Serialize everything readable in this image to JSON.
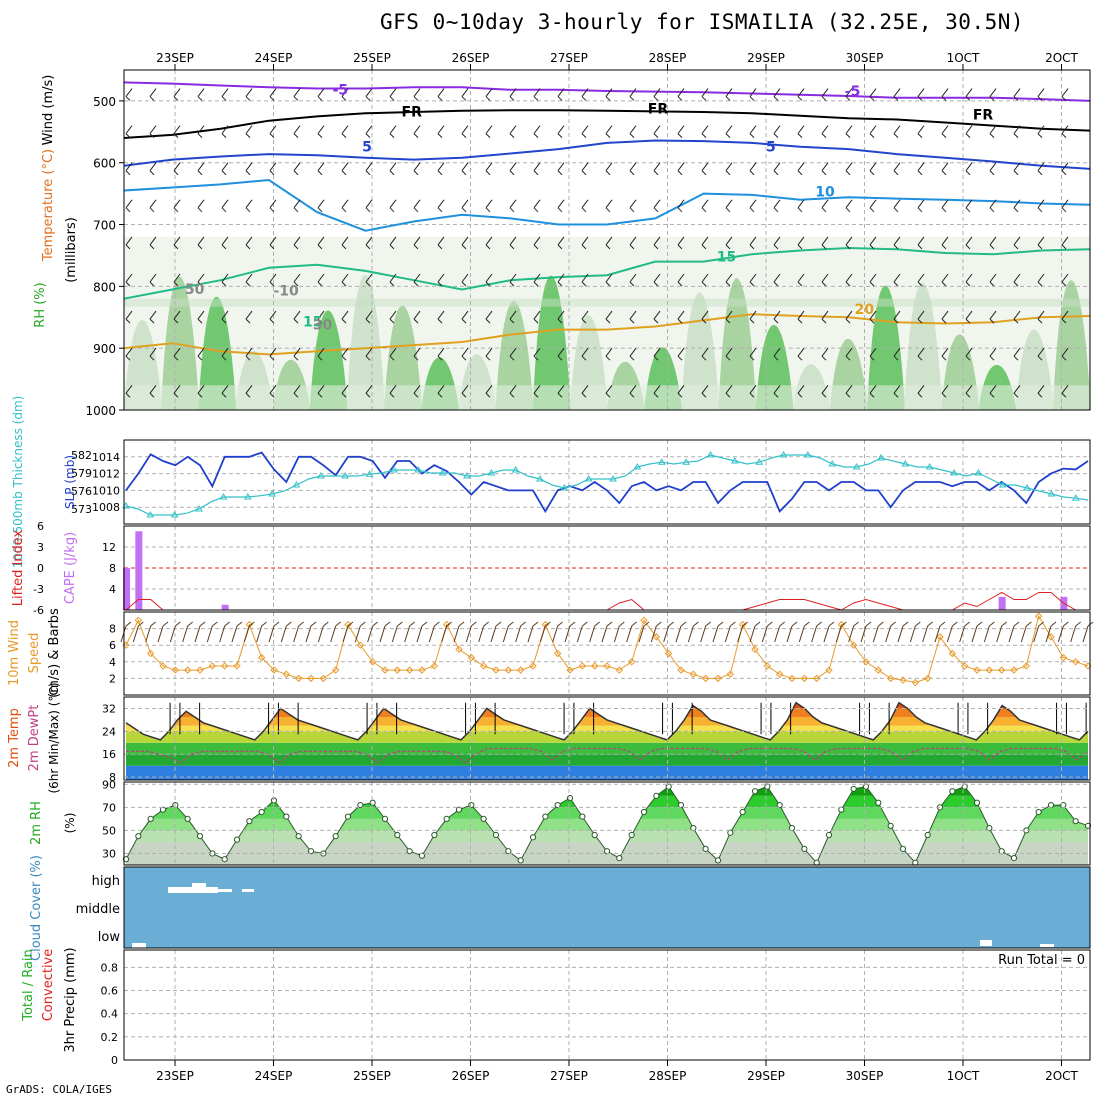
{
  "title": "GFS 0~10day 3-hourly for ISMAILIA (32.25E, 30.5N)",
  "footer": "GrADS: COLA/IGES",
  "colors": {
    "grid": "#b0b0b0",
    "frame": "#000000",
    "cloud": "#6aaed6",
    "sfc_blue": "#2e7fe0",
    "sfc_green": "#22a833",
    "tt": "#33c0c8",
    "slp": "#1f3fcc",
    "wind_line": "#e89a2a",
    "barb": "#5a3a1a",
    "cape": "#c070f0",
    "li": "#e02020"
  },
  "chart_data": [
    {
      "id": "upper-air",
      "type": "contour",
      "ylabel_parts": [
        {
          "text": "Wind (m/s)",
          "color": "#000000"
        },
        {
          "text": "Temperature (°C)",
          "color": "#e07020"
        },
        {
          "text": "RH (%)",
          "color": "#22aa22"
        }
      ],
      "ylabel_unit": "(millibars)",
      "x_ticks_top": [
        "23SEP",
        "24SEP",
        "25SEP",
        "26SEP",
        "27SEP",
        "28SEP",
        "29SEP",
        "30SEP",
        "1OCT",
        "2OCT"
      ],
      "y_ticks": [
        500,
        600,
        700,
        800,
        900,
        1000
      ],
      "contour_labels": [
        {
          "text": "-5",
          "x": 2.1,
          "y": 490,
          "color": "#8a2be2"
        },
        {
          "text": "-5",
          "x": 7.3,
          "y": 492,
          "color": "#8a2be2"
        },
        {
          "text": "FR",
          "x": 2.8,
          "y": 525,
          "color": "#000000"
        },
        {
          "text": "FR",
          "x": 5.3,
          "y": 520,
          "color": "#000000"
        },
        {
          "text": "FR",
          "x": 8.6,
          "y": 530,
          "color": "#000000"
        },
        {
          "text": "5",
          "x": 2.4,
          "y": 582,
          "color": "#2244cc"
        },
        {
          "text": "5",
          "x": 6.5,
          "y": 582,
          "color": "#2244cc"
        },
        {
          "text": "10",
          "x": 7.0,
          "y": 655,
          "color": "#1e90dd"
        },
        {
          "text": "15",
          "x": 6.0,
          "y": 760,
          "color": "#22bb88"
        },
        {
          "text": "15",
          "x": 1.8,
          "y": 865,
          "color": "#22bb88"
        },
        {
          "text": "20",
          "x": 7.4,
          "y": 845,
          "color": "#e0a020"
        },
        {
          "text": "-10",
          "x": 1.5,
          "y": 815,
          "color": "#888888"
        },
        {
          "text": "30",
          "x": 1.9,
          "y": 870,
          "color": "#888888"
        },
        {
          "text": "50",
          "x": 0.6,
          "y": 812,
          "color": "#888888"
        }
      ],
      "isotherms": [
        {
          "label": "-5",
          "color": "#8a2be2",
          "p": [
            470,
            472,
            475,
            478,
            480,
            480,
            478,
            478,
            482,
            482,
            484,
            485,
            486,
            488,
            490,
            492,
            495,
            495,
            495,
            497,
            500
          ]
        },
        {
          "label": "FR",
          "color": "#000000",
          "p": [
            560,
            555,
            545,
            532,
            525,
            520,
            518,
            516,
            515,
            515,
            516,
            517,
            518,
            520,
            524,
            528,
            530,
            535,
            540,
            545,
            548
          ]
        },
        {
          "label": "5",
          "color": "#2244cc",
          "p": [
            605,
            595,
            590,
            586,
            588,
            592,
            595,
            592,
            585,
            578,
            568,
            564,
            565,
            568,
            574,
            578,
            586,
            592,
            598,
            605,
            610
          ]
        },
        {
          "label": "10",
          "color": "#1e90dd",
          "p": [
            645,
            640,
            635,
            628,
            680,
            710,
            695,
            684,
            690,
            700,
            700,
            690,
            650,
            652,
            660,
            656,
            658,
            660,
            662,
            666,
            668
          ]
        },
        {
          "label": "15",
          "color": "#22bb88",
          "p": [
            820,
            805,
            790,
            770,
            765,
            775,
            790,
            805,
            790,
            785,
            782,
            760,
            760,
            748,
            742,
            738,
            740,
            746,
            748,
            742,
            740
          ]
        },
        {
          "label": "20",
          "color": "#e0a020",
          "p": [
            900,
            892,
            905,
            910,
            905,
            900,
            895,
            890,
            878,
            870,
            870,
            865,
            855,
            845,
            848,
            850,
            858,
            860,
            858,
            850,
            848
          ]
        }
      ]
    },
    {
      "id": "thickness-slp",
      "type": "line",
      "ylabel_left": "1000-500mb Thickness (dm)",
      "ylabel_right": "SLP (mb)",
      "y_ticks_thickness": [
        573,
        576,
        579,
        582
      ],
      "y_ticks_slp": [
        1008,
        1010,
        1012,
        1014
      ],
      "series": [
        {
          "name": "SLP (mb)",
          "color": "#1f3fcc",
          "marker": "none",
          "axis": "slp",
          "values": [
            1010,
            1012,
            1014.3,
            1013.5,
            1013,
            1014,
            1013,
            1010.5,
            1014,
            1014,
            1014,
            1014.5,
            1012.5,
            1011,
            1014,
            1014,
            1013,
            1011.8,
            1014,
            1014,
            1013.5,
            1011.5,
            1013.5,
            1013.5,
            1012,
            1013,
            1012.3,
            1011,
            1009.5,
            1011,
            1010.5,
            1010,
            1010,
            1010,
            1007.5,
            1010,
            1010.5,
            1010,
            1011,
            1010,
            1008.5,
            1010.5,
            1011,
            1010,
            1010.5,
            1010,
            1011,
            1011,
            1008.5,
            1010,
            1011,
            1011,
            1011,
            1007.5,
            1009,
            1011,
            1011,
            1010,
            1011,
            1011,
            1010,
            1010,
            1008,
            1010,
            1011,
            1011,
            1011,
            1010.5,
            1011,
            1011,
            1010,
            1011,
            1010,
            1008.5,
            1011,
            1012,
            1012.6,
            1012.5,
            1013.5
          ]
        },
        {
          "name": "1000-500mb Thickness (dm)",
          "color": "#33c0c8",
          "marker": "triangle",
          "axis": "thickness",
          "values": [
            573.5,
            573,
            572,
            572,
            572,
            572.3,
            573,
            574.2,
            575,
            575,
            575,
            575.2,
            575.5,
            576,
            577,
            578,
            578.5,
            578.5,
            578.5,
            578.5,
            578.8,
            579,
            579.5,
            579.5,
            579.5,
            579,
            579,
            579,
            578.5,
            578.5,
            579,
            579.5,
            579.5,
            578.5,
            578,
            577,
            576.5,
            577,
            578,
            578,
            578,
            578.5,
            580,
            580.5,
            580.8,
            580.5,
            580.8,
            581,
            582,
            581.5,
            581,
            580.5,
            580.8,
            581.5,
            582,
            582,
            582,
            581.5,
            580.5,
            580,
            580,
            580.5,
            581.5,
            581,
            580.5,
            580,
            580,
            579.5,
            579,
            578.5,
            579,
            578,
            577,
            577,
            576.5,
            576,
            575.5,
            575,
            574.8,
            574.5
          ]
        }
      ]
    },
    {
      "id": "cape-li",
      "type": "bar+line",
      "ylabel_left": "Lifted Index",
      "ylabel_right": "CAPE (J/kg)",
      "y_ticks_li": [
        "6",
        "3",
        "0",
        "-3",
        "-6"
      ],
      "y_ticks_cape": [
        4,
        8,
        12
      ],
      "series": [
        {
          "name": "CAPE (J/kg)",
          "color": "#c070f0",
          "type": "bar",
          "values": [
            8,
            15,
            0,
            0,
            0,
            0,
            0,
            0,
            1,
            0,
            0,
            0,
            0,
            0,
            0,
            0,
            0,
            0,
            0,
            0,
            0,
            0,
            0,
            0,
            0,
            0,
            0,
            0,
            0,
            0,
            0,
            0,
            0,
            0,
            0,
            0,
            0,
            0,
            0,
            0,
            0,
            0,
            0,
            0,
            0,
            0,
            0,
            0,
            0,
            0,
            0,
            0,
            0,
            0,
            0,
            0,
            0,
            0,
            0,
            0,
            0,
            0,
            0,
            0,
            0,
            0,
            0,
            0,
            0,
            0,
            0,
            2.5,
            0,
            0,
            0,
            0,
            2.5,
            0,
            0
          ]
        },
        {
          "name": "Lifted Index",
          "color": "#e02020",
          "type": "line",
          "values": [
            6,
            4.5,
            4.5,
            6,
            6,
            6,
            6,
            6,
            6,
            6,
            6,
            6,
            6,
            6,
            6,
            6,
            6,
            6,
            6,
            6,
            6,
            6,
            6,
            6,
            6,
            6,
            6,
            6,
            6,
            6,
            6,
            6,
            6,
            6,
            6,
            6,
            6,
            6,
            6,
            6,
            5,
            4.5,
            6,
            6,
            6,
            6,
            6,
            6,
            6,
            6,
            6,
            5.5,
            5,
            4.5,
            4.5,
            4.5,
            5,
            5.5,
            6,
            5,
            4.5,
            5,
            5.5,
            6,
            6,
            6,
            6,
            6,
            5,
            5.5,
            4.5,
            3.5,
            4.5,
            4.5,
            3.5,
            3.5,
            5,
            6,
            6
          ]
        }
      ]
    },
    {
      "id": "wind10m",
      "type": "line",
      "ylabel": "10m Wind Speed (m/s) & Barbs",
      "y_ticks": [
        2,
        4,
        6,
        8
      ],
      "series": [
        {
          "name": "10m Wind Speed",
          "color": "#e89a2a",
          "marker": "diamond",
          "values": [
            6,
            9,
            5,
            3.5,
            3,
            3,
            3,
            3.5,
            3.5,
            3.5,
            8.5,
            4.5,
            3,
            2.5,
            2,
            2,
            2,
            3,
            8.5,
            6,
            4,
            3,
            3,
            3,
            3,
            3.5,
            8.5,
            5.5,
            4.5,
            3.5,
            3,
            3,
            3,
            3.5,
            8.5,
            5,
            3,
            3.5,
            3.5,
            3.5,
            3,
            4,
            9,
            7,
            5,
            3,
            2.5,
            2,
            2,
            2.5,
            8.5,
            5.5,
            3.5,
            2.5,
            2,
            2,
            2,
            3,
            8.5,
            6,
            4,
            3,
            2,
            1.8,
            1.5,
            2,
            7,
            5,
            3.5,
            3,
            3,
            3,
            3,
            3.5,
            9.5,
            7,
            4.5,
            4,
            3.5
          ]
        }
      ]
    },
    {
      "id": "temperature2m",
      "type": "area+line",
      "ylabel": "2m Temp 2m DewPt (6hr Min/Max) (°C)",
      "y_ticks": [
        8,
        16,
        24,
        32
      ],
      "series": [
        {
          "name": "2m Temp",
          "values": [
            27,
            25,
            23,
            22,
            21,
            24,
            28,
            31,
            29,
            27,
            26,
            25,
            24,
            23,
            22,
            21,
            24,
            28,
            32,
            30,
            28,
            27,
            26,
            25,
            24,
            23,
            22,
            21,
            24,
            28,
            32,
            30,
            28,
            27,
            26,
            25,
            24,
            23,
            22,
            21,
            24,
            28,
            32,
            30,
            28,
            27,
            26,
            25,
            24,
            23,
            22,
            21,
            24,
            28,
            32,
            30,
            28,
            27,
            26,
            25,
            24,
            23,
            22,
            21,
            24,
            28,
            33,
            31,
            28,
            27,
            26,
            25,
            24,
            23,
            22,
            21,
            24,
            28,
            34,
            32,
            29,
            27,
            26,
            25,
            24,
            23,
            22,
            21,
            24,
            28,
            34,
            32,
            29,
            27,
            26,
            25,
            24,
            23,
            22,
            21,
            24,
            28,
            33,
            31,
            28,
            27,
            26,
            25,
            24,
            23,
            22,
            21,
            24
          ]
        },
        {
          "name": "2m DewPt",
          "values": [
            17,
            17,
            17,
            16,
            15,
            13,
            16,
            17,
            17,
            17,
            17,
            17,
            17,
            16,
            13,
            16,
            17,
            17,
            17,
            17,
            17,
            17,
            16,
            13,
            16,
            17,
            17,
            17,
            17,
            17,
            16,
            13,
            16,
            18,
            18,
            18,
            18,
            18,
            17,
            14,
            17,
            18,
            18,
            18,
            18,
            18,
            17,
            14,
            17,
            18,
            18,
            18,
            18,
            18,
            17,
            14,
            17,
            18,
            18,
            18,
            18,
            18,
            17,
            14,
            17,
            18,
            18,
            18,
            18,
            18,
            17,
            14,
            17,
            18,
            18,
            18,
            18,
            18,
            17,
            14,
            17,
            18,
            18,
            18,
            18,
            18,
            17,
            14,
            17
          ]
        }
      ]
    },
    {
      "id": "rh2m",
      "type": "area",
      "ylabel": "2m RH (%)",
      "y_ticks": [
        30,
        50,
        70,
        90
      ],
      "series": [
        {
          "name": "2m RH",
          "values": [
            25,
            45,
            60,
            68,
            72,
            60,
            45,
            30,
            25,
            42,
            58,
            66,
            76,
            62,
            45,
            32,
            30,
            45,
            62,
            72,
            74,
            60,
            46,
            32,
            28,
            46,
            60,
            68,
            72,
            60,
            46,
            32,
            24,
            44,
            62,
            72,
            78,
            62,
            46,
            32,
            26,
            46,
            66,
            80,
            88,
            72,
            52,
            34,
            24,
            48,
            66,
            84,
            88,
            72,
            52,
            34,
            22,
            46,
            68,
            86,
            88,
            74,
            54,
            34,
            22,
            46,
            70,
            84,
            88,
            74,
            52,
            32,
            26,
            50,
            66,
            72,
            72,
            58,
            54
          ]
        }
      ]
    },
    {
      "id": "cloud",
      "type": "band",
      "ylabel": "Cloud Cover (%)",
      "levels": [
        "high",
        "middle",
        "low"
      ]
    },
    {
      "id": "precip",
      "type": "bar",
      "ylabel_parts": [
        {
          "text": "Total / Rain",
          "color": "#22aa22"
        },
        {
          "text": "Convective",
          "color": "#e02020"
        },
        {
          "text": "3hr Precip (mm)",
          "color": "#000000"
        }
      ],
      "run_total": "Run Total = 0",
      "y_ticks": [
        0,
        0.2,
        0.4,
        0.6,
        0.8
      ],
      "x_ticks_bottom": [
        "23SEP",
        "24SEP",
        "25SEP",
        "26SEP",
        "27SEP",
        "28SEP",
        "29SEP",
        "30SEP",
        "1OCT",
        "2OCT"
      ]
    }
  ]
}
